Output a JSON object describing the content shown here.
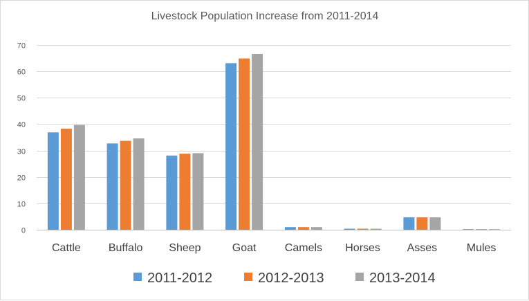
{
  "chart_data": {
    "type": "bar",
    "title": "Livestock Population Increase from 2011-2014",
    "xlabel": "",
    "ylabel": "",
    "ylim": [
      0,
      70
    ],
    "yticks": [
      0,
      10,
      20,
      30,
      40,
      50,
      60,
      70
    ],
    "grid": true,
    "legend_position": "bottom",
    "categories": [
      "Cattle",
      "Buffalo",
      "Sheep",
      "Goat",
      "Camels",
      "Horses",
      "Asses",
      "Mules"
    ],
    "series": [
      {
        "name": "2011-2012",
        "color": "#5b9bd5",
        "values": [
          36.9,
          32.7,
          28.1,
          63.1,
          1.0,
          0.4,
          4.7,
          0.2
        ]
      },
      {
        "name": "2012-2013",
        "color": "#ed7d31",
        "values": [
          38.3,
          33.7,
          28.8,
          64.9,
          1.0,
          0.4,
          4.7,
          0.2
        ]
      },
      {
        "name": "2013-2014",
        "color": "#a5a5a5",
        "values": [
          39.7,
          34.6,
          29.0,
          66.6,
          1.0,
          0.4,
          4.7,
          0.2
        ]
      }
    ]
  }
}
